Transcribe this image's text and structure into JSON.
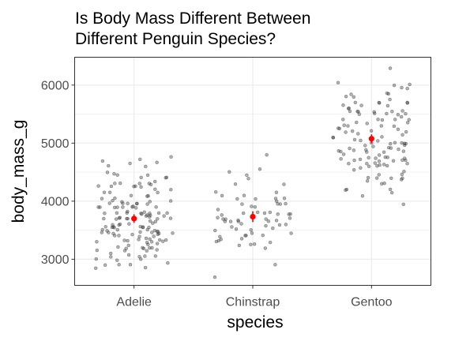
{
  "chart_data": {
    "type": "scatter",
    "title_lines": [
      "Is Body Mass Different Between",
      "Different Penguin Species?"
    ],
    "xlabel": "species",
    "ylabel": "body_mass_g",
    "categories": [
      "Adelie",
      "Chinstrap",
      "Gentoo"
    ],
    "ylim": [
      2550,
      6480
    ],
    "yticks": [
      3000,
      4000,
      5000,
      6000
    ],
    "grid": true,
    "jittered_points": true,
    "colors": {
      "points": "#333333",
      "mean": "#ff0000",
      "grid": "#ebebeb",
      "panel_border": "#333333"
    },
    "means": [
      3700,
      3733,
      5076
    ],
    "mean_intervals": [
      [
        3625,
        3775
      ],
      [
        3640,
        3826
      ],
      [
        5000,
        5152
      ]
    ],
    "series": [
      {
        "category": "Adelie",
        "values": [
          3750,
          3800,
          3250,
          3450,
          3650,
          3625,
          4675,
          3475,
          4250,
          3300,
          3700,
          3200,
          3800,
          4400,
          3700,
          3450,
          4500,
          3325,
          4200,
          3400,
          3600,
          3800,
          3950,
          3800,
          3800,
          3550,
          3200,
          3150,
          3950,
          3250,
          3900,
          3300,
          3900,
          3325,
          4150,
          3950,
          3550,
          3300,
          4650,
          3150,
          3900,
          3100,
          4400,
          3000,
          4600,
          3425,
          2975,
          3450,
          4150,
          3500,
          4300,
          3450,
          4050,
          2900,
          3700,
          3550,
          3800,
          2850,
          3750,
          3150,
          4400,
          3600,
          4050,
          2850,
          3950,
          3350,
          4100,
          3050,
          4450,
          3600,
          3900,
          3550,
          4150,
          3700,
          4250,
          3700,
          3900,
          3550,
          4000,
          3200,
          4700,
          3800,
          4200,
          3350,
          3550,
          3800,
          3500,
          3950,
          3600,
          3550,
          4300,
          3400,
          4450,
          3300,
          4300,
          3700,
          4350,
          2900,
          4100,
          3725,
          4725,
          3075,
          4250,
          2925,
          3550,
          3750,
          3900,
          3175,
          4775,
          3825,
          4600,
          3200,
          4275,
          3900,
          4075,
          2900,
          3775,
          3350,
          3325,
          3150,
          3500,
          3450,
          3875,
          3050,
          4000,
          3275,
          4300,
          3050,
          4000,
          3325,
          3500,
          3500,
          4475,
          3425,
          3900,
          3175,
          3975,
          3400,
          4250,
          3400,
          3475,
          3050,
          3725,
          3000,
          3650,
          4250,
          3475,
          3450,
          3750,
          3700,
          4000
        ]
      },
      {
        "category": "Chinstrap",
        "values": [
          3500,
          3900,
          3650,
          3525,
          3725,
          3950,
          3250,
          3750,
          4150,
          3700,
          3800,
          3775,
          3700,
          4050,
          3575,
          4050,
          3300,
          3700,
          3450,
          4400,
          3600,
          3400,
          2900,
          3800,
          3300,
          4150,
          3400,
          3800,
          3700,
          4550,
          3200,
          4300,
          3350,
          4100,
          3600,
          3900,
          3850,
          4800,
          2700,
          4500,
          3950,
          3650,
          3550,
          3500,
          3675,
          4450,
          3400,
          4300,
          3250,
          3675,
          3325,
          3950,
          3600,
          4050,
          3350,
          3450,
          3250,
          4050,
          3800,
          3525,
          3950,
          3650,
          3650,
          4000,
          3400,
          3775,
          4100,
          3775
        ]
      },
      {
        "category": "Gentoo",
        "values": [
          4500,
          5700,
          4450,
          5700,
          5400,
          4550,
          4800,
          5200,
          4400,
          5150,
          4650,
          5550,
          4650,
          5850,
          4200,
          5850,
          4150,
          6300,
          4800,
          5350,
          5700,
          5000,
          4400,
          5050,
          5000,
          5100,
          4100,
          5650,
          4600,
          5550,
          5250,
          4700,
          5050,
          6050,
          5150,
          5400,
          4950,
          5250,
          4350,
          5350,
          3950,
          5700,
          4300,
          4750,
          5550,
          4900,
          4200,
          5400,
          5100,
          5300,
          4850,
          5300,
          4400,
          5000,
          4900,
          5050,
          4300,
          5000,
          4450,
          5550,
          4200,
          5300,
          4400,
          5650,
          4700,
          5700,
          4650,
          5800,
          4700,
          5550,
          4750,
          5000,
          5100,
          5200,
          4700,
          5800,
          4600,
          6000,
          4750,
          5950,
          4625,
          5450,
          4725,
          5350,
          4750,
          5600,
          4600,
          5300,
          4875,
          5550,
          4950,
          5400,
          4750,
          5650,
          4850,
          5200,
          4925,
          4875,
          4625,
          5250,
          4850,
          5600,
          4975,
          5500,
          4725,
          5500,
          4700,
          5500,
          4575,
          5500,
          5000,
          5950,
          4650,
          5500,
          4375,
          5850,
          4875,
          6000,
          4925,
          4850,
          5750,
          5200,
          5400
        ]
      }
    ]
  }
}
